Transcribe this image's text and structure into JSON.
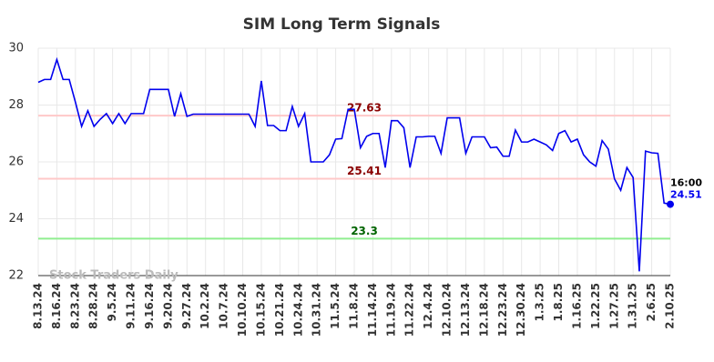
{
  "chart_data": {
    "type": "line",
    "title": "SIM Long Term Signals",
    "categories": [
      "8.13.24",
      null,
      null,
      "8.16.24",
      null,
      null,
      "8.23.24",
      null,
      null,
      "8.28.24",
      null,
      null,
      "9.5.24",
      null,
      null,
      "9.11.24",
      null,
      null,
      "9.16.24",
      null,
      null,
      "9.20.24",
      null,
      null,
      "9.27.24",
      null,
      null,
      "10.2.24",
      null,
      null,
      "10.7.24",
      null,
      null,
      "10.10.24",
      null,
      null,
      "10.15.24",
      null,
      null,
      "10.21.24",
      null,
      null,
      "10.24.24",
      null,
      null,
      "10.31.24",
      null,
      null,
      "11.5.24",
      null,
      null,
      "11.8.24",
      null,
      null,
      "11.14.24",
      null,
      null,
      "11.19.24",
      null,
      null,
      "11.22.24",
      null,
      null,
      "12.4.24",
      null,
      null,
      "12.10.24",
      null,
      null,
      "12.13.24",
      null,
      null,
      "12.18.24",
      null,
      null,
      "12.23.24",
      null,
      null,
      "12.30.24",
      null,
      null,
      "1.3.25",
      null,
      null,
      "1.8.25",
      null,
      null,
      "1.16.25",
      null,
      null,
      "1.22.25",
      null,
      null,
      "1.27.25",
      null,
      null,
      "1.31.25",
      null,
      null,
      "2.6.25",
      null,
      null,
      "2.10.25"
    ],
    "values": [
      28.8,
      28.9,
      28.9,
      29.6,
      28.9,
      28.9,
      28.1,
      27.25,
      27.8,
      27.25,
      27.5,
      27.7,
      27.35,
      27.7,
      27.35,
      27.7,
      27.7,
      27.7,
      28.55,
      28.55,
      28.55,
      28.55,
      27.6,
      28.4,
      27.6,
      27.68,
      27.68,
      27.68,
      27.68,
      27.68,
      27.68,
      27.68,
      27.68,
      27.68,
      27.68,
      27.25,
      28.85,
      27.28,
      27.28,
      27.1,
      27.1,
      27.95,
      27.25,
      27.7,
      26.0,
      26.0,
      26.0,
      26.25,
      26.8,
      26.82,
      27.85,
      27.85,
      26.5,
      26.9,
      27.0,
      27.0,
      25.8,
      27.45,
      27.45,
      27.2,
      25.8,
      26.88,
      26.88,
      26.9,
      26.9,
      26.3,
      27.55,
      27.55,
      27.55,
      26.3,
      26.88,
      26.88,
      26.88,
      26.5,
      26.52,
      26.2,
      26.2,
      27.12,
      26.7,
      26.7,
      26.8,
      26.7,
      26.6,
      26.4,
      27.0,
      27.1,
      26.7,
      26.8,
      26.25,
      26.0,
      25.85,
      26.75,
      26.45,
      25.4,
      25.0,
      25.8,
      25.45,
      22.15,
      26.38,
      26.32,
      26.3,
      24.55,
      24.51
    ],
    "color": "#0000ee",
    "ylim": [
      22,
      30
    ],
    "yticks": [
      22,
      24,
      26,
      28,
      30
    ],
    "grid": true,
    "hlines": [
      {
        "value": 27.63,
        "color": "#ffc8c8",
        "label_color": "#8b0000"
      },
      {
        "value": 25.41,
        "color": "#ffc8c8",
        "label_color": "#8b0000"
      },
      {
        "value": 23.3,
        "color": "#90ee90",
        "label_color": "#006400"
      }
    ],
    "last_time": "16:00",
    "watermark": "Stock Traders Daily"
  }
}
